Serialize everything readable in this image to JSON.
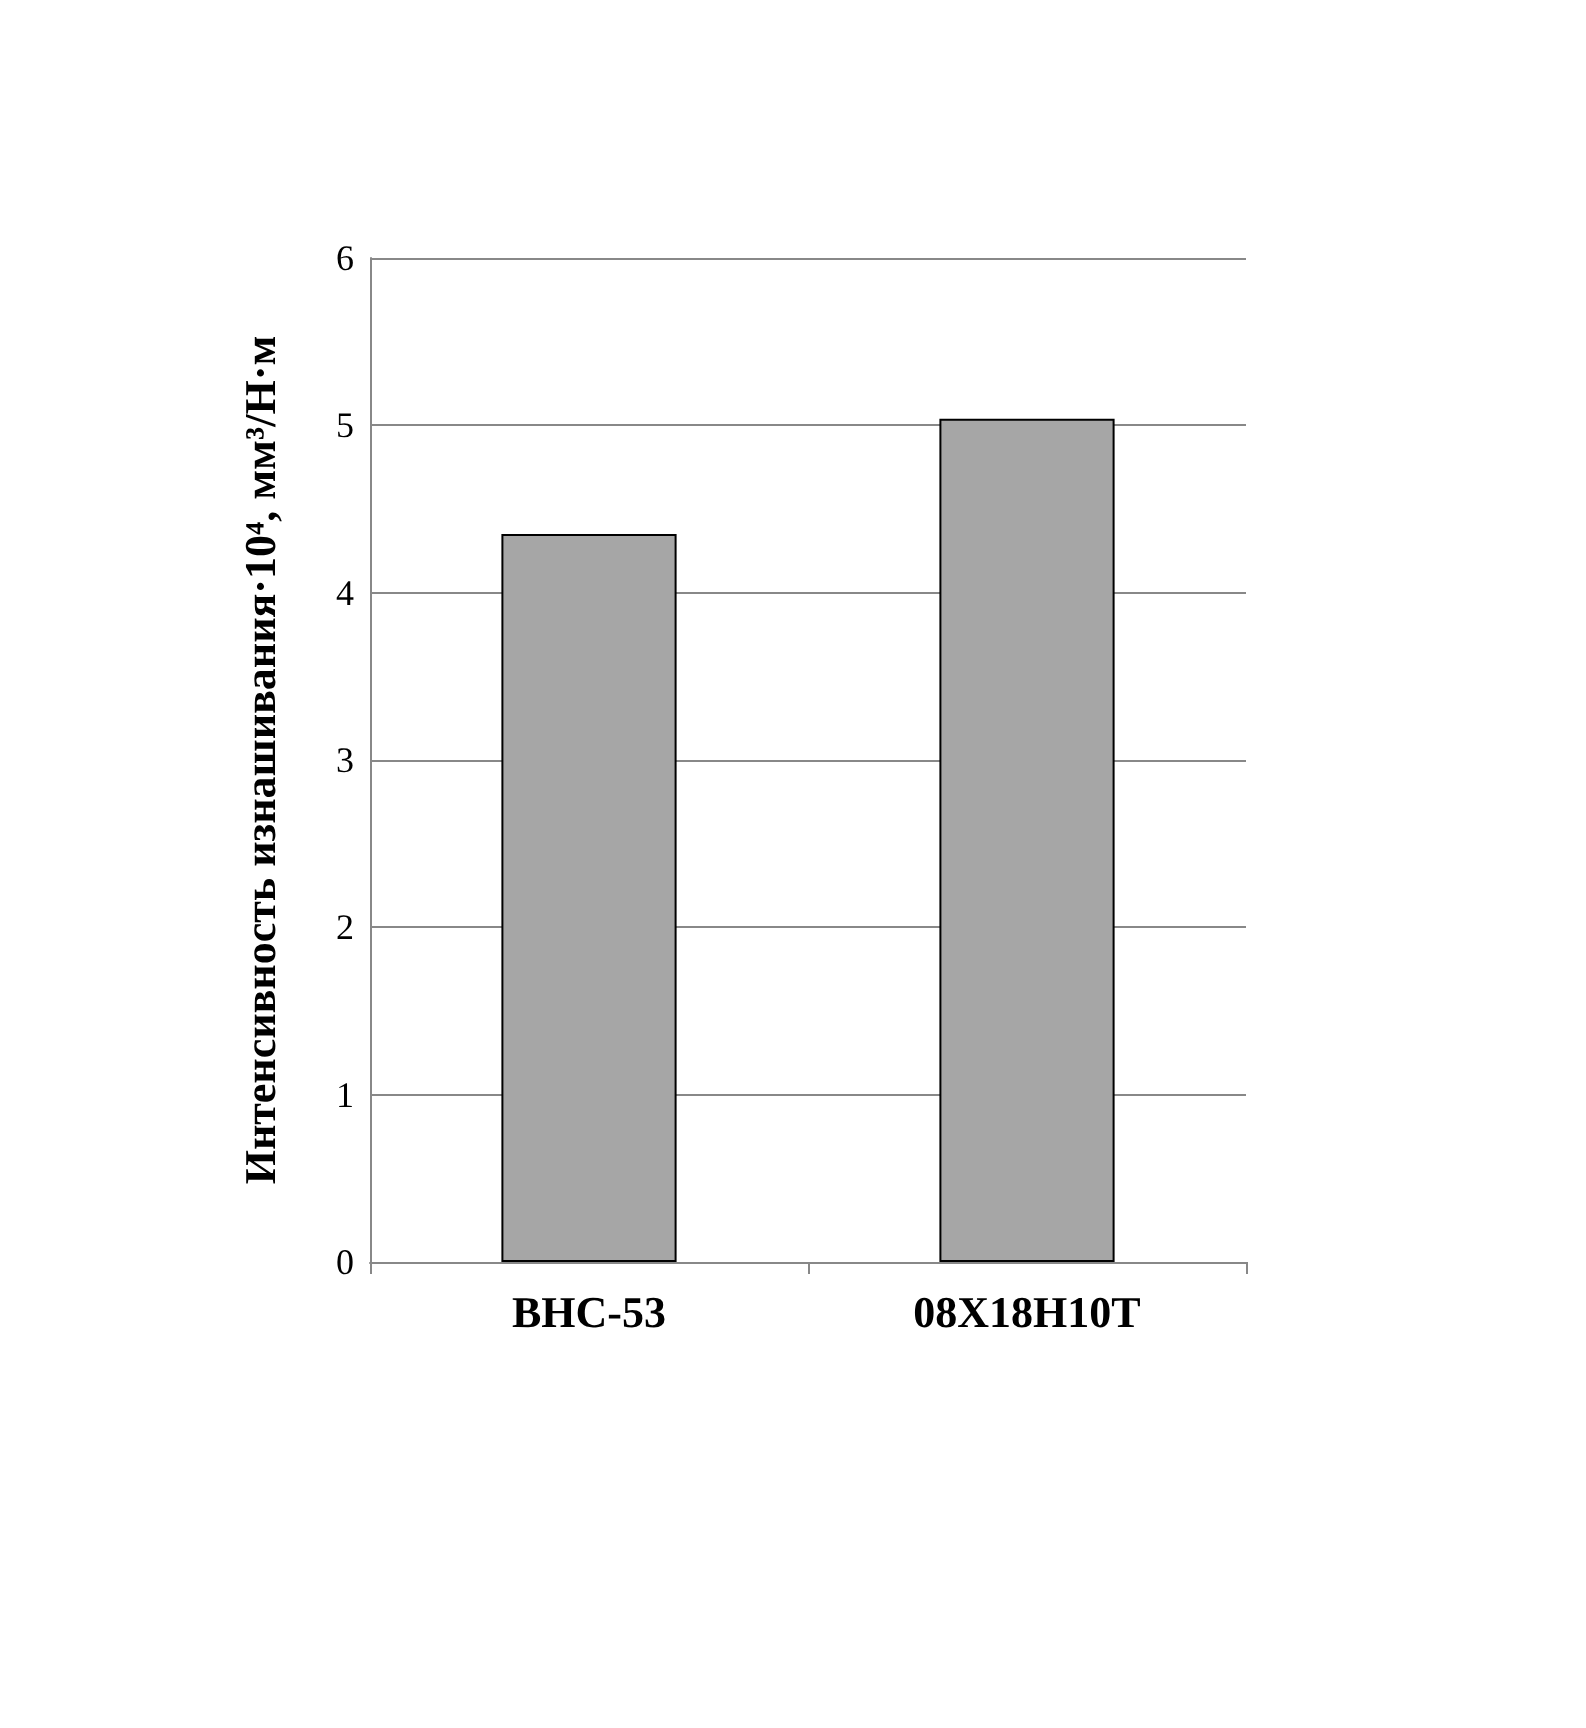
{
  "chart_data": {
    "type": "bar",
    "ylabel": "Интенсивность изнашивания·10⁴, мм³/Н·м",
    "categories": [
      "ВНС-53",
      "08Х18Н10Т"
    ],
    "values": [
      4.35,
      5.04
    ],
    "color": "#a6a6a6",
    "ylim": [
      0,
      6
    ],
    "yticks": [
      0,
      1,
      2,
      3,
      4,
      5,
      6
    ],
    "grid": "y"
  }
}
